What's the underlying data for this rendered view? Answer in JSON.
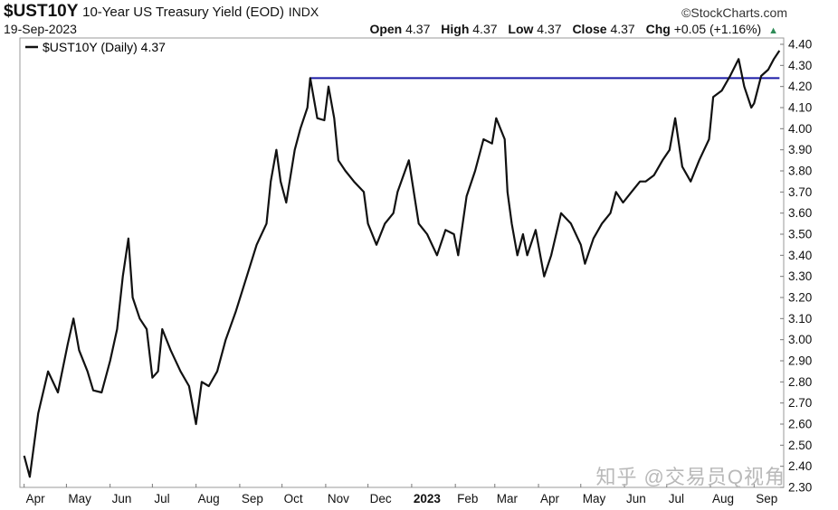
{
  "header": {
    "symbol": "$UST10Y",
    "description": "10-Year US Treasury Yield (EOD)",
    "exchange": "INDX",
    "brand": "©StockCharts.com",
    "date": "19-Sep-2023",
    "open_label": "Open",
    "open": "4.37",
    "high_label": "High",
    "high": "4.37",
    "low_label": "Low",
    "low": "4.37",
    "close_label": "Close",
    "close": "4.37",
    "chg_label": "Chg",
    "chg": "+0.05 (+1.16%)",
    "chg_icon": "up-triangle-icon"
  },
  "legend": {
    "label": "$UST10Y (Daily) 4.37"
  },
  "watermark": "知乎 @交易员Q视角",
  "colors": {
    "line": "#111111",
    "resistance": "#1a1aa6",
    "up": "#2e8b57"
  },
  "chart_data": {
    "type": "line",
    "title": "10-Year US Treasury Yield (EOD)",
    "xlabel": "",
    "ylabel": "",
    "ylim": [
      2.3,
      4.43
    ],
    "y_ticks": [
      "4.40",
      "4.30",
      "4.20",
      "4.10",
      "4.00",
      "3.90",
      "3.80",
      "3.70",
      "3.60",
      "3.50",
      "3.40",
      "3.30",
      "3.20",
      "3.10",
      "3.00",
      "2.90",
      "2.80",
      "2.70",
      "2.60",
      "2.50",
      "2.40",
      "2.30"
    ],
    "x_ticks": [
      "Apr",
      "May",
      "Jun",
      "Jul",
      "Aug",
      "Sep",
      "Oct",
      "Nov",
      "Dec",
      "2023",
      "Feb",
      "Mar",
      "Apr",
      "May",
      "Jun",
      "Jul",
      "Aug",
      "Sep"
    ],
    "x_tick_bold": [
      "2023"
    ],
    "grid": false,
    "legend_position": "top-left",
    "series": [
      {
        "name": "$UST10Y (Daily)",
        "x": [
          "2022-04-01",
          "2022-04-05",
          "2022-04-11",
          "2022-04-18",
          "2022-04-25",
          "2022-05-02",
          "2022-05-06",
          "2022-05-10",
          "2022-05-16",
          "2022-05-20",
          "2022-05-26",
          "2022-06-01",
          "2022-06-06",
          "2022-06-10",
          "2022-06-14",
          "2022-06-17",
          "2022-06-22",
          "2022-06-27",
          "2022-07-01",
          "2022-07-05",
          "2022-07-08",
          "2022-07-14",
          "2022-07-21",
          "2022-07-27",
          "2022-08-01",
          "2022-08-05",
          "2022-08-10",
          "2022-08-16",
          "2022-08-22",
          "2022-08-29",
          "2022-09-06",
          "2022-09-13",
          "2022-09-20",
          "2022-09-23",
          "2022-09-27",
          "2022-09-30",
          "2022-10-04",
          "2022-10-10",
          "2022-10-14",
          "2022-10-19",
          "2022-10-21",
          "2022-10-26",
          "2022-10-31",
          "2022-11-03",
          "2022-11-07",
          "2022-11-10",
          "2022-11-15",
          "2022-11-21",
          "2022-11-28",
          "2022-12-01",
          "2022-12-07",
          "2022-12-13",
          "2022-12-19",
          "2022-12-22",
          "2022-12-30",
          "2023-01-06",
          "2023-01-12",
          "2023-01-19",
          "2023-01-25",
          "2023-01-31",
          "2023-02-03",
          "2023-02-09",
          "2023-02-15",
          "2023-02-21",
          "2023-02-27",
          "2023-03-02",
          "2023-03-08",
          "2023-03-10",
          "2023-03-13",
          "2023-03-17",
          "2023-03-21",
          "2023-03-24",
          "2023-03-30",
          "2023-04-05",
          "2023-04-10",
          "2023-04-17",
          "2023-04-24",
          "2023-05-01",
          "2023-05-04",
          "2023-05-10",
          "2023-05-16",
          "2023-05-22",
          "2023-05-26",
          "2023-05-31",
          "2023-06-06",
          "2023-06-12",
          "2023-06-16",
          "2023-06-22",
          "2023-06-28",
          "2023-07-03",
          "2023-07-07",
          "2023-07-12",
          "2023-07-18",
          "2023-07-24",
          "2023-07-31",
          "2023-08-03",
          "2023-08-09",
          "2023-08-15",
          "2023-08-21",
          "2023-08-25",
          "2023-08-30",
          "2023-09-01",
          "2023-09-06",
          "2023-09-11",
          "2023-09-15",
          "2023-09-19"
        ],
        "values": [
          2.45,
          2.35,
          2.65,
          2.85,
          2.75,
          2.98,
          3.1,
          2.95,
          2.85,
          2.76,
          2.75,
          2.9,
          3.05,
          3.3,
          3.48,
          3.2,
          3.1,
          3.05,
          2.82,
          2.85,
          3.05,
          2.95,
          2.85,
          2.78,
          2.6,
          2.8,
          2.78,
          2.85,
          3.0,
          3.13,
          3.3,
          3.45,
          3.55,
          3.75,
          3.9,
          3.75,
          3.65,
          3.9,
          4.0,
          4.1,
          4.24,
          4.05,
          4.04,
          4.2,
          4.05,
          3.85,
          3.8,
          3.75,
          3.7,
          3.55,
          3.45,
          3.55,
          3.6,
          3.7,
          3.85,
          3.55,
          3.5,
          3.4,
          3.52,
          3.5,
          3.4,
          3.68,
          3.8,
          3.95,
          3.93,
          4.05,
          3.95,
          3.7,
          3.55,
          3.4,
          3.5,
          3.4,
          3.52,
          3.3,
          3.4,
          3.6,
          3.55,
          3.45,
          3.36,
          3.48,
          3.55,
          3.6,
          3.7,
          3.65,
          3.7,
          3.75,
          3.75,
          3.78,
          3.85,
          3.9,
          4.05,
          3.82,
          3.75,
          3.85,
          3.95,
          4.15,
          4.18,
          4.25,
          4.33,
          4.2,
          4.1,
          4.12,
          4.25,
          4.28,
          4.33,
          4.37
        ]
      }
    ],
    "resistance_level": 4.24,
    "resistance_start": "2022-10-21",
    "resistance_end": "2023-09-19"
  }
}
